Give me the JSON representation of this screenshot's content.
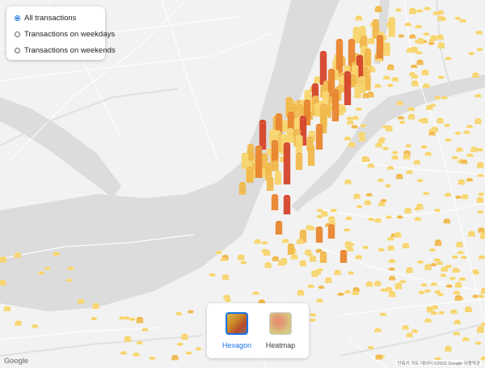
{
  "filter": {
    "options": [
      {
        "label": "All transactions",
        "checked": true
      },
      {
        "label": "Transactions on weekdays",
        "checked": false
      },
      {
        "label": "Transactions on weekends",
        "checked": false
      }
    ]
  },
  "modes": [
    {
      "label": "Hexagon",
      "active": true
    },
    {
      "label": "Heatmap",
      "active": false
    }
  ],
  "logo": "Google",
  "attribution": "단축키   지도 데이터 ©2022 Google   이용약관",
  "colors": {
    "land": "#f1f1f1",
    "water": "#dadada",
    "accent": "#1a73e8",
    "hex_low": "#f7d46b",
    "hex_mid": "#f0b84a",
    "hex_high": "#e8852e",
    "hex_top": "#d4452a"
  }
}
